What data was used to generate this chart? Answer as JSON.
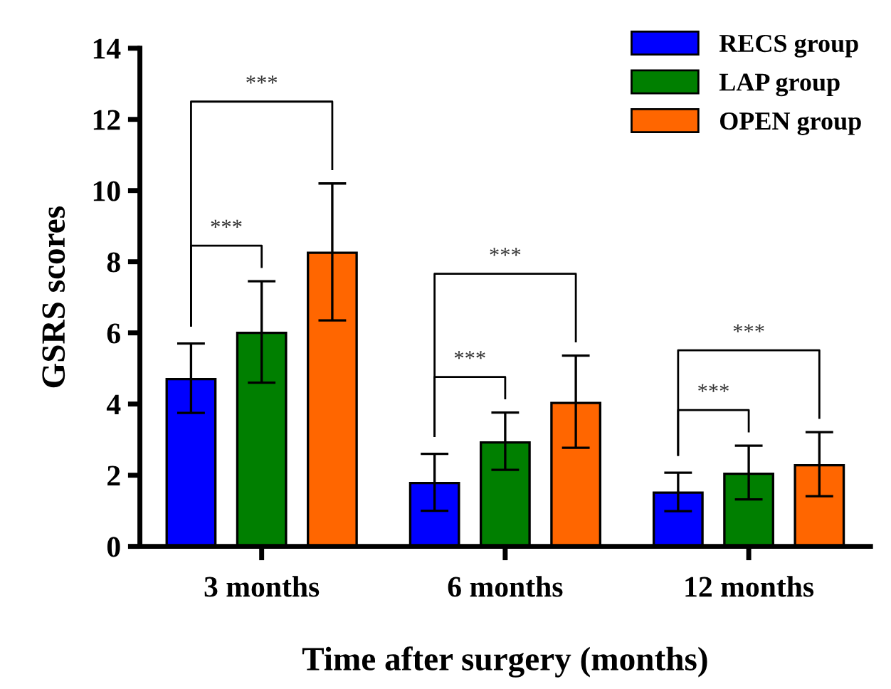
{
  "chart_data": {
    "type": "bar",
    "xlabel": "Time after surgery (months)",
    "ylabel": "GSRS scores",
    "categories": [
      "3 months",
      "6 months",
      "12 months"
    ],
    "series": [
      {
        "name": "RECS group",
        "color": "#0000ff",
        "values": [
          4.7,
          1.78,
          1.51
        ],
        "errors": [
          [
            3.75,
            5.7
          ],
          [
            1.0,
            2.6
          ],
          [
            0.99,
            2.07
          ]
        ]
      },
      {
        "name": "LAP group",
        "color": "#007f00",
        "values": [
          6.0,
          2.92,
          2.04
        ],
        "errors": [
          [
            4.6,
            7.45
          ],
          [
            2.15,
            3.76
          ],
          [
            1.32,
            2.83
          ]
        ]
      },
      {
        "name": "OPEN group",
        "color": "#ff6600",
        "values": [
          8.25,
          4.03,
          2.28
        ],
        "errors": [
          [
            6.35,
            10.2
          ],
          [
            2.77,
            5.36
          ],
          [
            1.41,
            3.21
          ]
        ]
      }
    ],
    "ylim": [
      0,
      14
    ],
    "yticks": [
      0,
      2,
      4,
      6,
      8,
      10,
      12,
      14
    ],
    "grid": false,
    "legend": "top right",
    "annotations": [
      "***",
      "***",
      "***",
      "***",
      "***",
      "***"
    ]
  }
}
